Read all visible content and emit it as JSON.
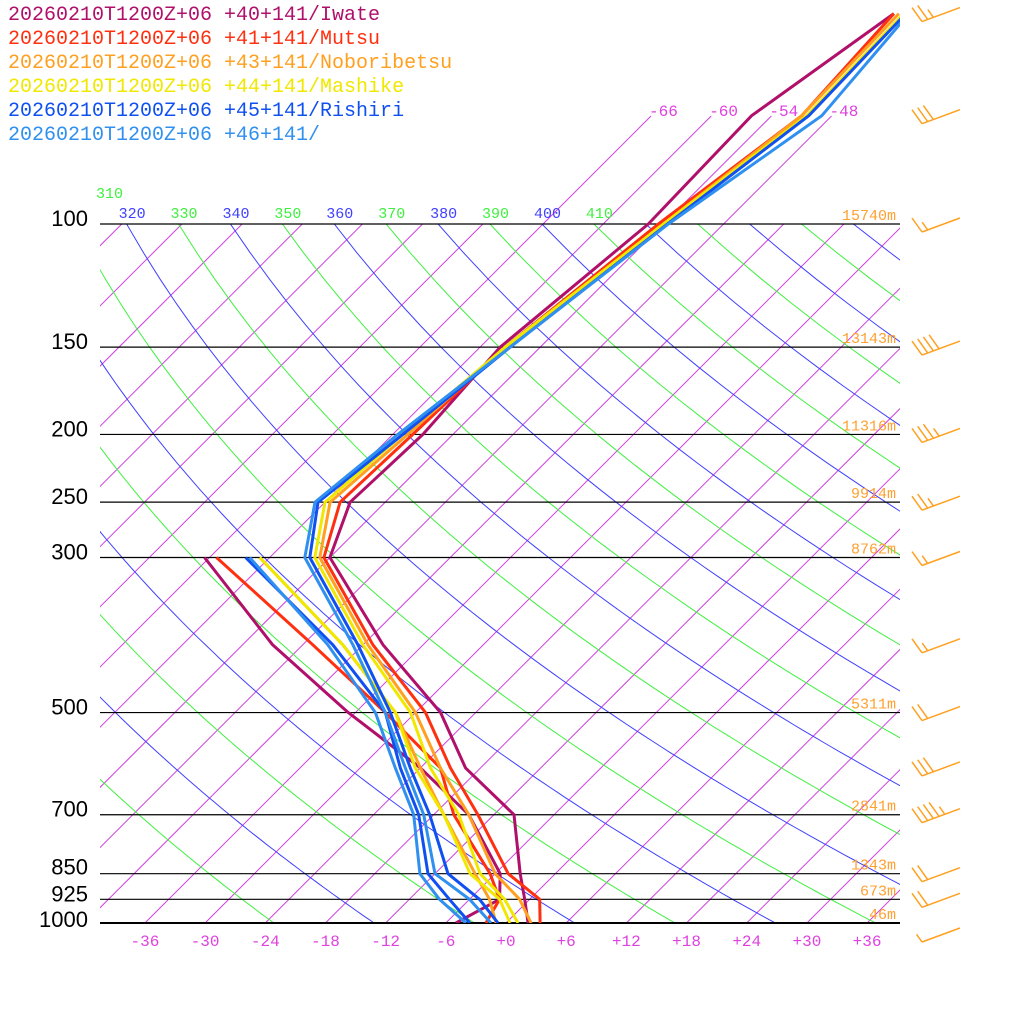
{
  "legend": [
    {
      "label": "20260210T1200Z+06 +40+141/Iwate",
      "color": "#b0106a"
    },
    {
      "label": "20260210T1200Z+06 +41+141/Mutsu",
      "color": "#ff3010"
    },
    {
      "label": "20260210T1200Z+06 +43+141/Noboribetsu",
      "color": "#ffa020"
    },
    {
      "label": "20260210T1200Z+06 +44+141/Mashike",
      "color": "#f0e800"
    },
    {
      "label": "20260210T1200Z+06 +45+141/Rishiri",
      "color": "#1050f0"
    },
    {
      "label": "20260210T1200Z+06 +46+141/",
      "color": "#3090f0"
    }
  ],
  "chart_data": {
    "type": "line",
    "subtype": "skew-T log-p",
    "pressure_axis_labels": [
      "100",
      "150",
      "200",
      "250",
      "300",
      "500",
      "700",
      "850",
      "925",
      "1000"
    ],
    "pressure_axis_values": [
      100,
      150,
      200,
      250,
      300,
      500,
      700,
      850,
      925,
      1000
    ],
    "temperature_tick_labels": [
      "-36",
      "-30",
      "-24",
      "-18",
      "-12",
      "-6",
      "+0",
      "+6",
      "+12",
      "+18",
      "+24",
      "+30",
      "+36"
    ],
    "temperature_tick_values": [
      -36,
      -30,
      -24,
      -18,
      -12,
      -6,
      0,
      6,
      12,
      18,
      24,
      30,
      36
    ],
    "upper_isotherm_labels": [
      "-66",
      "-60",
      "-54",
      "-48"
    ],
    "upper_isotherm_values": [
      -66,
      -60,
      -54,
      -48
    ],
    "theta_labels": [
      "310",
      "320",
      "330",
      "340",
      "350",
      "360",
      "370",
      "380",
      "390",
      "400",
      "410"
    ],
    "theta_values": [
      310,
      320,
      330,
      340,
      350,
      360,
      370,
      380,
      390,
      400,
      410
    ],
    "heights": [
      {
        "p": 100,
        "label": "15740m"
      },
      {
        "p": 150,
        "label": "13143m"
      },
      {
        "p": 200,
        "label": "11316m"
      },
      {
        "p": 250,
        "label": "9914m"
      },
      {
        "p": 300,
        "label": "8762m"
      },
      {
        "p": 500,
        "label": "5311m"
      },
      {
        "p": 700,
        "label": "2841m"
      },
      {
        "p": 850,
        "label": "1343m"
      },
      {
        "p": 925,
        "label": "673m"
      },
      {
        "p": 1000,
        "label": "46m"
      }
    ],
    "levels": [
      1000,
      925,
      850,
      700,
      600,
      500,
      400,
      300,
      250,
      200,
      150,
      100,
      70,
      50
    ],
    "dewpoint_levels": [
      1000,
      925,
      850,
      700,
      600,
      500,
      400,
      300
    ],
    "series": [
      {
        "name": "Iwate",
        "color": "#b0106a",
        "T": [
          2.2,
          -0.5,
          -3.5,
          -10,
          -19.5,
          -27.5,
          -40,
          -54,
          -57.5,
          -57,
          -58,
          -55.5,
          -56,
          -52
        ],
        "Td": [
          -5,
          -3,
          -5.5,
          -14.5,
          -24,
          -36.7,
          -51,
          -66.5
        ]
      },
      {
        "name": "Mutsu",
        "color": "#ff3010",
        "T": [
          3.4,
          1,
          -4.7,
          -13.6,
          -21,
          -29,
          -41,
          -54.6,
          -58.5,
          -58,
          -57.5,
          -54.5,
          -51,
          -52
        ],
        "Td": [
          -2,
          -3,
          -6.5,
          -16,
          -22,
          -33,
          -47,
          -65.3
        ]
      },
      {
        "name": "Noboribetsu",
        "color": "#ffa020",
        "T": [
          2.5,
          -1,
          -6,
          -14.5,
          -22,
          -30,
          -41.5,
          -55,
          -59.5,
          -58.5,
          -57.5,
          -54,
          -51,
          -51.5
        ],
        "Td": [
          -1,
          -4,
          -8,
          -17,
          -24,
          -32,
          -44,
          -61
        ]
      },
      {
        "name": "Mashike",
        "color": "#f0e800",
        "T": [
          1.2,
          -2.5,
          -7.5,
          -15.5,
          -23,
          -30.5,
          -42,
          -55.5,
          -60,
          -59,
          -57.5,
          -54,
          -50.5,
          -51
        ],
        "Td": [
          0.4,
          -3,
          -8.5,
          -17,
          -24.5,
          -32,
          -44,
          -61
        ]
      },
      {
        "name": "Rishiri",
        "color": "#1050f0",
        "T": [
          -0.8,
          -5,
          -10.7,
          -18.4,
          -25,
          -32.5,
          -42.5,
          -56,
          -60.7,
          -59,
          -57,
          -53.6,
          -50.3,
          -50.8
        ],
        "Td": [
          -3.6,
          -8,
          -12.7,
          -19.5,
          -26,
          -33,
          -45,
          -62.4
        ]
      },
      {
        "name": "+46+141",
        "color": "#3090f0",
        "T": [
          -1.5,
          -6,
          -12,
          -19,
          -25.5,
          -33,
          -43,
          -56.5,
          -61,
          -59.5,
          -57,
          -53.5,
          -49,
          -50.5
        ],
        "Td": [
          -4,
          -9,
          -13.5,
          -20,
          -26.5,
          -34,
          -45.5,
          -62
        ]
      }
    ],
    "winds": [
      {
        "p": 50,
        "speed_kt": 25
      },
      {
        "p": 70,
        "speed_kt": 30
      },
      {
        "p": 100,
        "speed_kt": 15
      },
      {
        "p": 150,
        "speed_kt": 40
      },
      {
        "p": 200,
        "speed_kt": 35
      },
      {
        "p": 250,
        "speed_kt": 25
      },
      {
        "p": 300,
        "speed_kt": 15
      },
      {
        "p": 400,
        "speed_kt": 15
      },
      {
        "p": 500,
        "speed_kt": 20
      },
      {
        "p": 600,
        "speed_kt": 30
      },
      {
        "p": 700,
        "speed_kt": 45
      },
      {
        "p": 850,
        "speed_kt": 20
      },
      {
        "p": 925,
        "speed_kt": 20
      },
      {
        "p": 1000,
        "speed_kt": 5
      }
    ],
    "colors": {
      "isotherm": "#d040e0",
      "adiabat_a": "#4040ff",
      "adiabat_b": "#40f040",
      "isobar": "#000000",
      "height": "#ffa030",
      "barb": "#ffa020"
    }
  }
}
